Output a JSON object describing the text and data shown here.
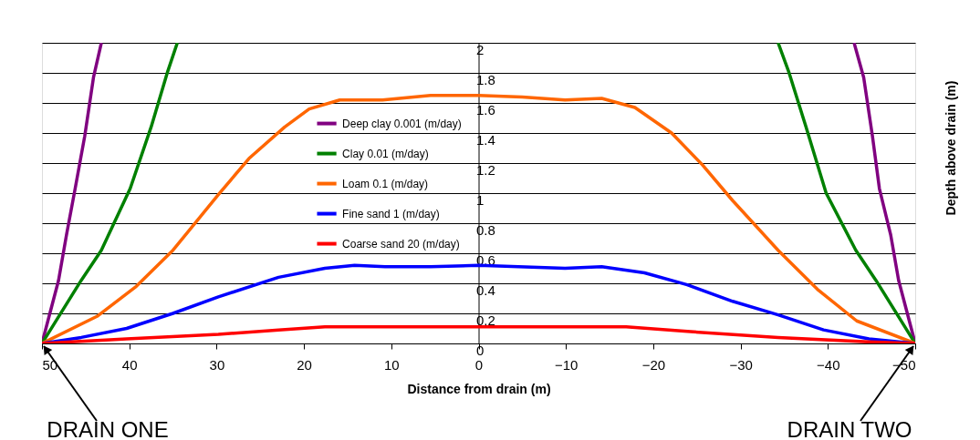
{
  "chart_data": {
    "type": "line",
    "xlabel": "Distance from drain (m)",
    "ylabel": "Depth above drain (m)",
    "xlim": [
      50,
      -50
    ],
    "xticks": [
      50,
      40,
      30,
      20,
      10,
      0,
      -10,
      -20,
      -30,
      -40,
      -50
    ],
    "ylim": [
      0,
      2
    ],
    "yticks": [
      0,
      0.2,
      0.4,
      0.6,
      0.8,
      1,
      1.2,
      1.4,
      1.6,
      1.8,
      2
    ],
    "grid": "y",
    "legend": "left",
    "marker": "none",
    "line_style": "solid",
    "annotations": [
      {
        "text": "DRAIN ONE",
        "x": 50,
        "y": 0
      },
      {
        "text": "DRAIN TWO",
        "x": -50,
        "y": 0
      }
    ],
    "series": [
      {
        "name": "Deep clay 0.001 (m/day)",
        "color": "#800080",
        "x": [
          50,
          48.1,
          47.2,
          46.2,
          45.1,
          44.1,
          43.2,
          0,
          -43.0,
          -44.1,
          -45.1,
          -45.9,
          -47.2,
          -48.1,
          -50
        ],
        "values": [
          0,
          0.42,
          0.72,
          1.03,
          1.38,
          1.77,
          2,
          null,
          2,
          1.77,
          1.38,
          1.03,
          0.72,
          0.42,
          0
        ]
      },
      {
        "name": "Clay 0.01 (m/day)",
        "color": "#008000",
        "x": [
          50,
          45.5,
          43.2,
          39.9,
          37.5,
          35.6,
          34.5,
          0,
          -34.3,
          -35.5,
          -37.5,
          -39.8,
          -43.2,
          -45.5,
          -50
        ],
        "values": [
          0,
          0.42,
          0.62,
          1.03,
          1.44,
          1.81,
          2,
          null,
          2,
          1.81,
          1.44,
          1.0,
          0.62,
          0.42,
          0
        ]
      },
      {
        "name": "Loam 0.1 (m/day)",
        "color": "#ff6600",
        "x": [
          50,
          43.7,
          39.2,
          35.0,
          29.8,
          26.3,
          22.2,
          19.4,
          15.9,
          11.0,
          5.5,
          0,
          -5,
          -9.9,
          -14.1,
          -17.9,
          -22.1,
          -25.6,
          -29.1,
          -34.3,
          -38.8,
          -43.3,
          -50
        ],
        "values": [
          0,
          0.18,
          0.38,
          0.62,
          0.99,
          1.23,
          1.44,
          1.56,
          1.62,
          1.62,
          1.65,
          1.65,
          1.64,
          1.62,
          1.63,
          1.57,
          1.4,
          1.19,
          0.95,
          0.62,
          0.36,
          0.15,
          0
        ]
      },
      {
        "name": "Fine sand 1 (m/day)",
        "color": "#0000ff",
        "x": [
          50,
          45.5,
          40.3,
          35.0,
          29.8,
          22.9,
          17.6,
          14.2,
          10.7,
          5.5,
          0,
          -9.9,
          -14.1,
          -19.0,
          -23.9,
          -29.1,
          -34.3,
          -39.5,
          -44.7,
          -50
        ],
        "values": [
          0,
          0.04,
          0.1,
          0.2,
          0.31,
          0.44,
          0.5,
          0.52,
          0.51,
          0.51,
          0.52,
          0.5,
          0.51,
          0.47,
          0.39,
          0.28,
          0.19,
          0.09,
          0.03,
          0
        ]
      },
      {
        "name": "Coarse sand 20 (m/day)",
        "color": "#ff0000",
        "x": [
          50,
          40.3,
          29.8,
          22.9,
          17.6,
          0,
          -16.9,
          -23.9,
          -34.3,
          -44.7,
          -50
        ],
        "values": [
          0,
          0.03,
          0.06,
          0.09,
          0.11,
          0.11,
          0.11,
          0.08,
          0.04,
          0.01,
          0
        ]
      }
    ]
  }
}
